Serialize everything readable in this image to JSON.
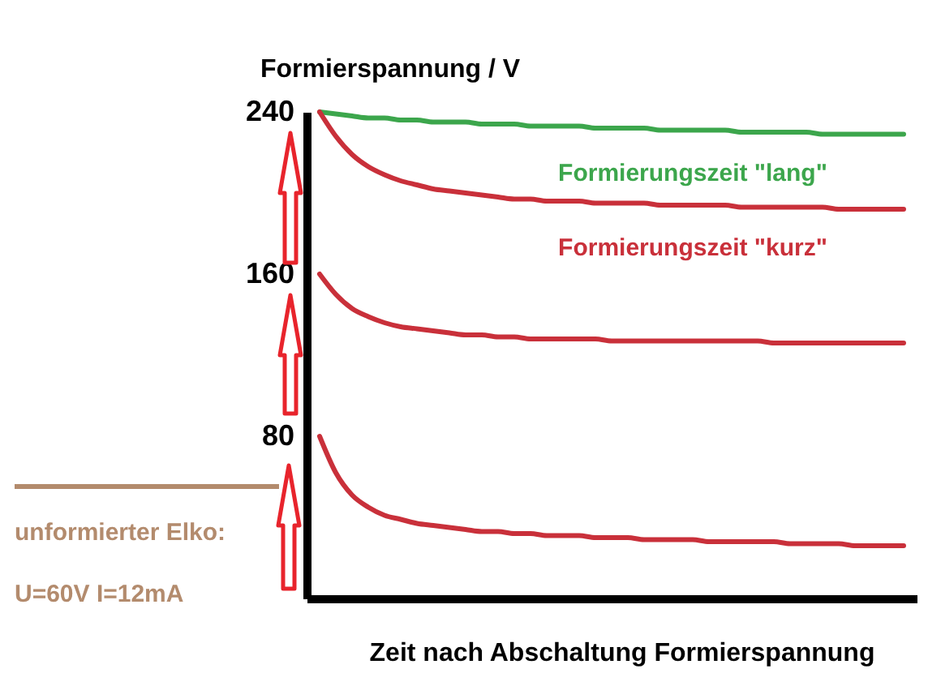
{
  "chart_data": {
    "type": "line",
    "xlabel": "Zeit nach Abschaltung Formierspannung",
    "ylabel": "Formierspannung / V",
    "categories": [
      null,
      null,
      null,
      null,
      null,
      null,
      null,
      null,
      null,
      null,
      null,
      null,
      null,
      null,
      null,
      null,
      null,
      null,
      null,
      null,
      null,
      null,
      null,
      null,
      null,
      null,
      null,
      null,
      null,
      null,
      null,
      null,
      null,
      null,
      null,
      null,
      null
    ],
    "ylim": [
      0,
      240
    ],
    "yticks": [
      80,
      160,
      240
    ],
    "tick_labels": "y",
    "series": [
      {
        "name": "Formierungszeit \"lang\"",
        "color": "#3ca64c",
        "values": [
          240,
          239,
          238,
          237,
          237,
          236,
          236,
          235,
          235,
          235,
          234,
          234,
          234,
          233,
          233,
          233,
          233,
          232,
          232,
          232,
          232,
          231,
          231,
          231,
          231,
          231,
          230,
          230,
          230,
          230,
          230,
          229,
          229,
          229,
          229,
          229,
          229
        ]
      },
      {
        "name": "Formierungszeit \"kurz\"",
        "color": "#c9303a",
        "values": [
          240,
          228,
          219,
          213,
          209,
          206,
          204,
          202,
          201,
          200,
          199,
          198,
          197,
          197,
          196,
          196,
          196,
          195,
          195,
          195,
          195,
          194,
          194,
          194,
          194,
          194,
          193,
          193,
          193,
          193,
          193,
          193,
          192,
          192,
          192,
          192,
          192
        ]
      },
      {
        "color": "#c9303a",
        "values": [
          160,
          150,
          143,
          139,
          136,
          134,
          133,
          132,
          131,
          130,
          130,
          129,
          129,
          128,
          128,
          128,
          128,
          128,
          127,
          127,
          127,
          127,
          127,
          127,
          127,
          127,
          127,
          127,
          126,
          126,
          126,
          126,
          126,
          126,
          126,
          126,
          126
        ]
      },
      {
        "color": "#c9303a",
        "values": [
          80,
          62,
          51,
          45,
          41,
          39,
          37,
          36,
          35,
          34,
          33,
          33,
          32,
          32,
          31,
          31,
          31,
          30,
          30,
          30,
          29,
          29,
          29,
          29,
          28,
          28,
          28,
          28,
          28,
          27,
          27,
          27,
          27,
          26,
          26,
          26,
          26
        ]
      }
    ],
    "annotations": [
      "unformierter Elko:",
      "U=60V I=12mA"
    ]
  }
}
